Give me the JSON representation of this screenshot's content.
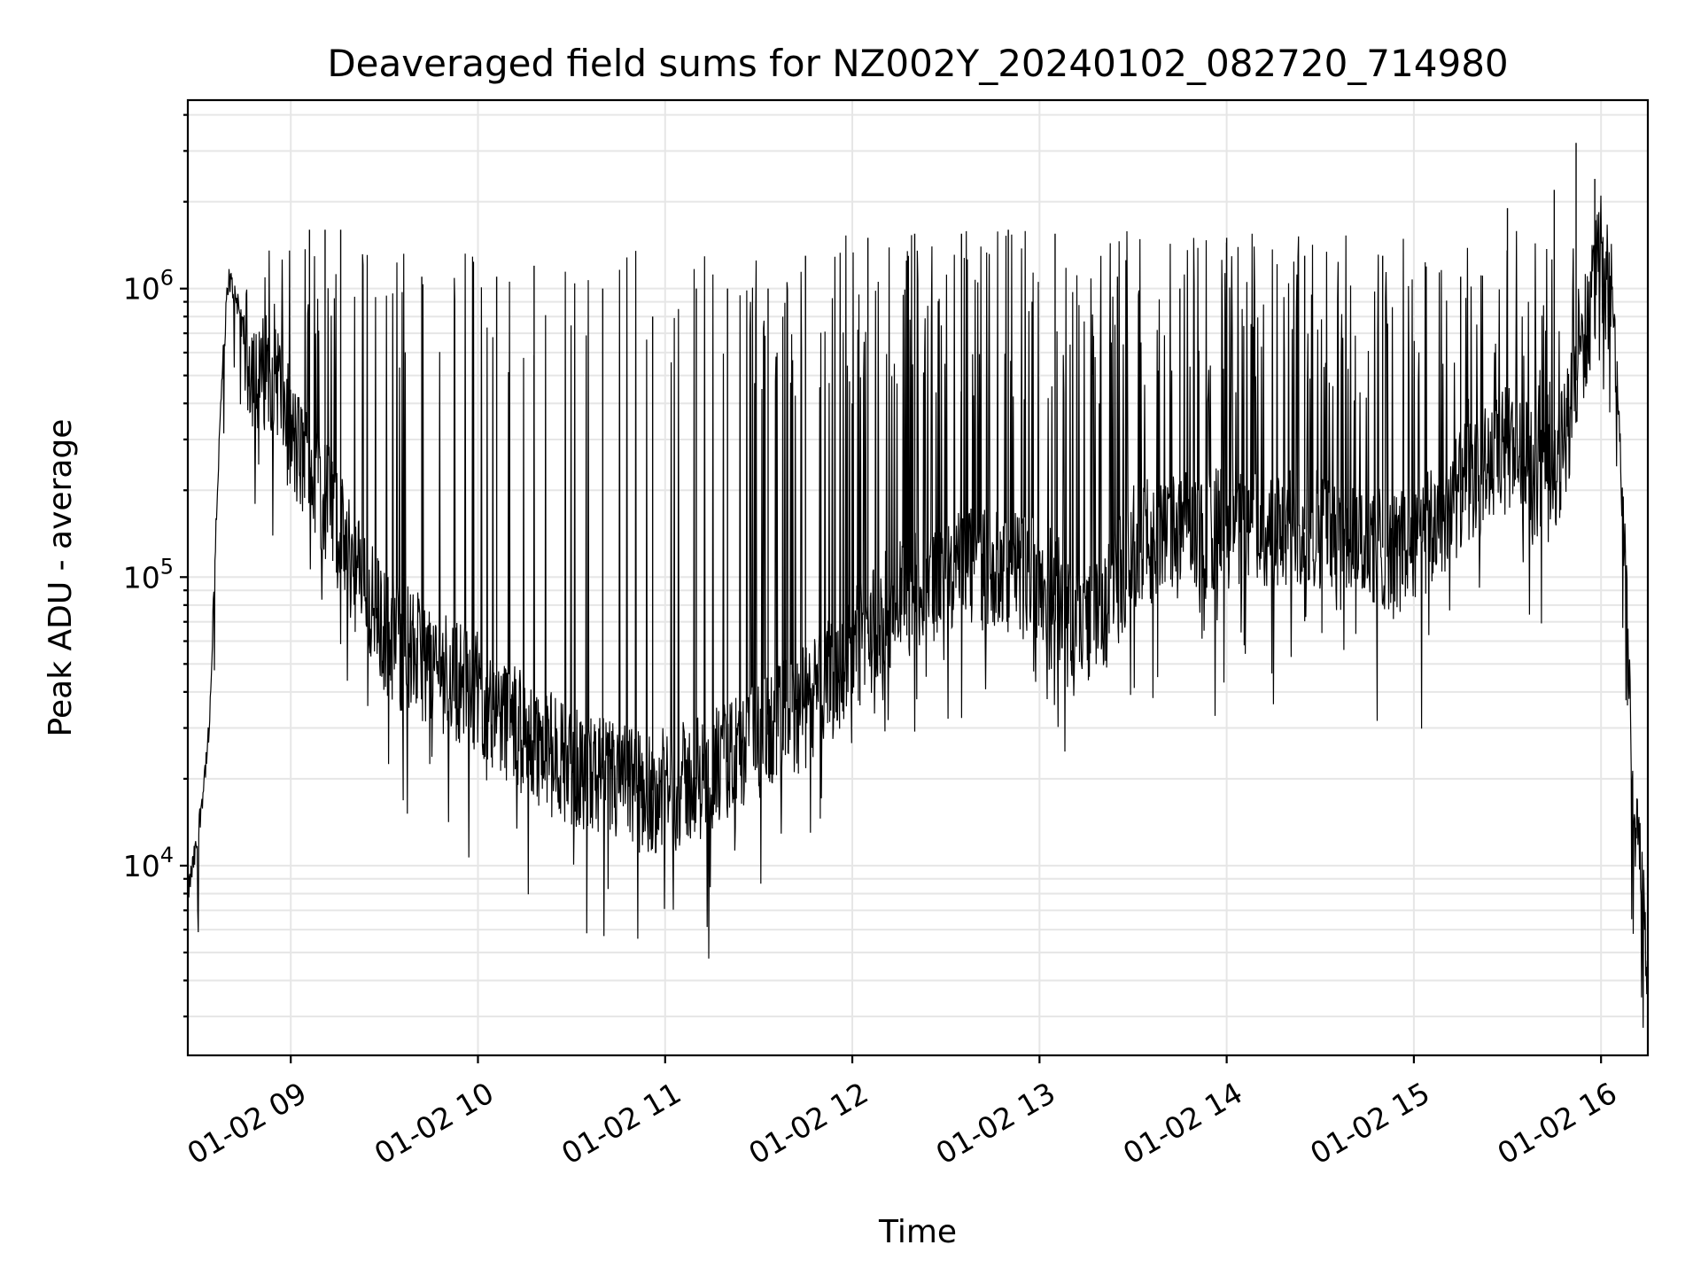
{
  "chart_data": {
    "type": "line",
    "title": "Deaveraged field sums for NZ002Y_20240102_082720_714980",
    "xlabel": "Time",
    "ylabel": "Peak ADU - average",
    "yscale": "log",
    "xlim": [
      "2024-01-02 08:27",
      "2024-01-02 16:15"
    ],
    "ylim": [
      2200,
      4500000
    ],
    "grid": true,
    "line_color": "#000000",
    "x_ticks": [
      {
        "value": "2024-01-02 09:00",
        "label": "01-02 09"
      },
      {
        "value": "2024-01-02 10:00",
        "label": "01-02 10"
      },
      {
        "value": "2024-01-02 11:00",
        "label": "01-02 11"
      },
      {
        "value": "2024-01-02 12:00",
        "label": "01-02 12"
      },
      {
        "value": "2024-01-02 13:00",
        "label": "01-02 13"
      },
      {
        "value": "2024-01-02 14:00",
        "label": "01-02 14"
      },
      {
        "value": "2024-01-02 15:00",
        "label": "01-02 15"
      },
      {
        "value": "2024-01-02 16:00",
        "label": "01-02 16"
      }
    ],
    "y_ticks": [
      {
        "value": 10000,
        "base": "10",
        "exp": "4"
      },
      {
        "value": 100000,
        "base": "10",
        "exp": "5"
      },
      {
        "value": 1000000,
        "base": "10",
        "exp": "6"
      }
    ],
    "series": [
      {
        "x": [
          "2024-01-02 08:27",
          "2024-01-02 08:30",
          "2024-01-02 08:34",
          "2024-01-02 08:36",
          "2024-01-02 08:38",
          "2024-01-02 08:40",
          "2024-01-02 08:43",
          "2024-01-02 08:46",
          "2024-01-02 08:50",
          "2024-01-02 08:55",
          "2024-01-02 09:00",
          "2024-01-02 09:10",
          "2024-01-02 09:20",
          "2024-01-02 09:30",
          "2024-01-02 09:45",
          "2024-01-02 10:00",
          "2024-01-02 10:15",
          "2024-01-02 10:30",
          "2024-01-02 10:45",
          "2024-01-02 11:00",
          "2024-01-02 11:15",
          "2024-01-02 11:30",
          "2024-01-02 11:45",
          "2024-01-02 12:00",
          "2024-01-02 12:15",
          "2024-01-02 12:30",
          "2024-01-02 12:45",
          "2024-01-02 13:00",
          "2024-01-02 13:10",
          "2024-01-02 13:20",
          "2024-01-02 13:30",
          "2024-01-02 13:45",
          "2024-01-02 14:00",
          "2024-01-02 14:15",
          "2024-01-02 14:30",
          "2024-01-02 14:45",
          "2024-01-02 15:00",
          "2024-01-02 15:15",
          "2024-01-02 15:30",
          "2024-01-02 15:45",
          "2024-01-02 15:55",
          "2024-01-02 16:00",
          "2024-01-02 16:04",
          "2024-01-02 16:08",
          "2024-01-02 16:10",
          "2024-01-02 16:13",
          "2024-01-02 16:15"
        ],
        "y": [
          8000,
          12000,
          30000,
          150000,
          500000,
          1100000,
          900000,
          600000,
          480000,
          550000,
          300000,
          200000,
          110000,
          65000,
          50000,
          40000,
          28000,
          22000,
          19000,
          18000,
          21000,
          27000,
          35000,
          55000,
          85000,
          100000,
          110000,
          100000,
          75000,
          70000,
          130000,
          140000,
          150000,
          140000,
          150000,
          130000,
          120000,
          200000,
          280000,
          200000,
          700000,
          1300000,
          800000,
          100000,
          20000,
          10000,
          4000
        ]
      }
    ],
    "spikes": [
      {
        "x": "2024-01-02 09:06",
        "y": 1600000
      },
      {
        "x": "2024-01-02 09:11",
        "y": 1600000
      },
      {
        "x": "2024-01-02 09:16",
        "y": 1600000
      },
      {
        "x": "2024-01-02 09:42",
        "y": 1100000
      },
      {
        "x": "2024-01-02 10:06",
        "y": 1100000
      },
      {
        "x": "2024-01-02 10:18",
        "y": 1200000
      },
      {
        "x": "2024-01-02 10:40",
        "y": 1000000
      },
      {
        "x": "2024-01-02 10:56",
        "y": 800000
      },
      {
        "x": "2024-01-02 11:10",
        "y": 1000000
      },
      {
        "x": "2024-01-02 11:20",
        "y": 1000000
      },
      {
        "x": "2024-01-02 11:33",
        "y": 1000000
      },
      {
        "x": "2024-01-02 11:45",
        "y": 1300000
      },
      {
        "x": "2024-01-02 12:05",
        "y": 1500000
      },
      {
        "x": "2024-01-02 12:20",
        "y": 1550000
      },
      {
        "x": "2024-01-02 12:35",
        "y": 1550000
      },
      {
        "x": "2024-01-02 12:50",
        "y": 1600000
      },
      {
        "x": "2024-01-02 13:05",
        "y": 1550000
      },
      {
        "x": "2024-01-02 13:25",
        "y": 1100000
      },
      {
        "x": "2024-01-02 13:45",
        "y": 1000000
      },
      {
        "x": "2024-01-02 14:00",
        "y": 1500000
      },
      {
        "x": "2024-01-02 14:25",
        "y": 1300000
      },
      {
        "x": "2024-01-02 14:50",
        "y": 1300000
      },
      {
        "x": "2024-01-02 15:15",
        "y": 1100000
      },
      {
        "x": "2024-01-02 15:30",
        "y": 1900000
      },
      {
        "x": "2024-01-02 15:45",
        "y": 2200000
      },
      {
        "x": "2024-01-02 15:52",
        "y": 3200000
      },
      {
        "x": "2024-01-02 15:58",
        "y": 2400000
      }
    ]
  }
}
